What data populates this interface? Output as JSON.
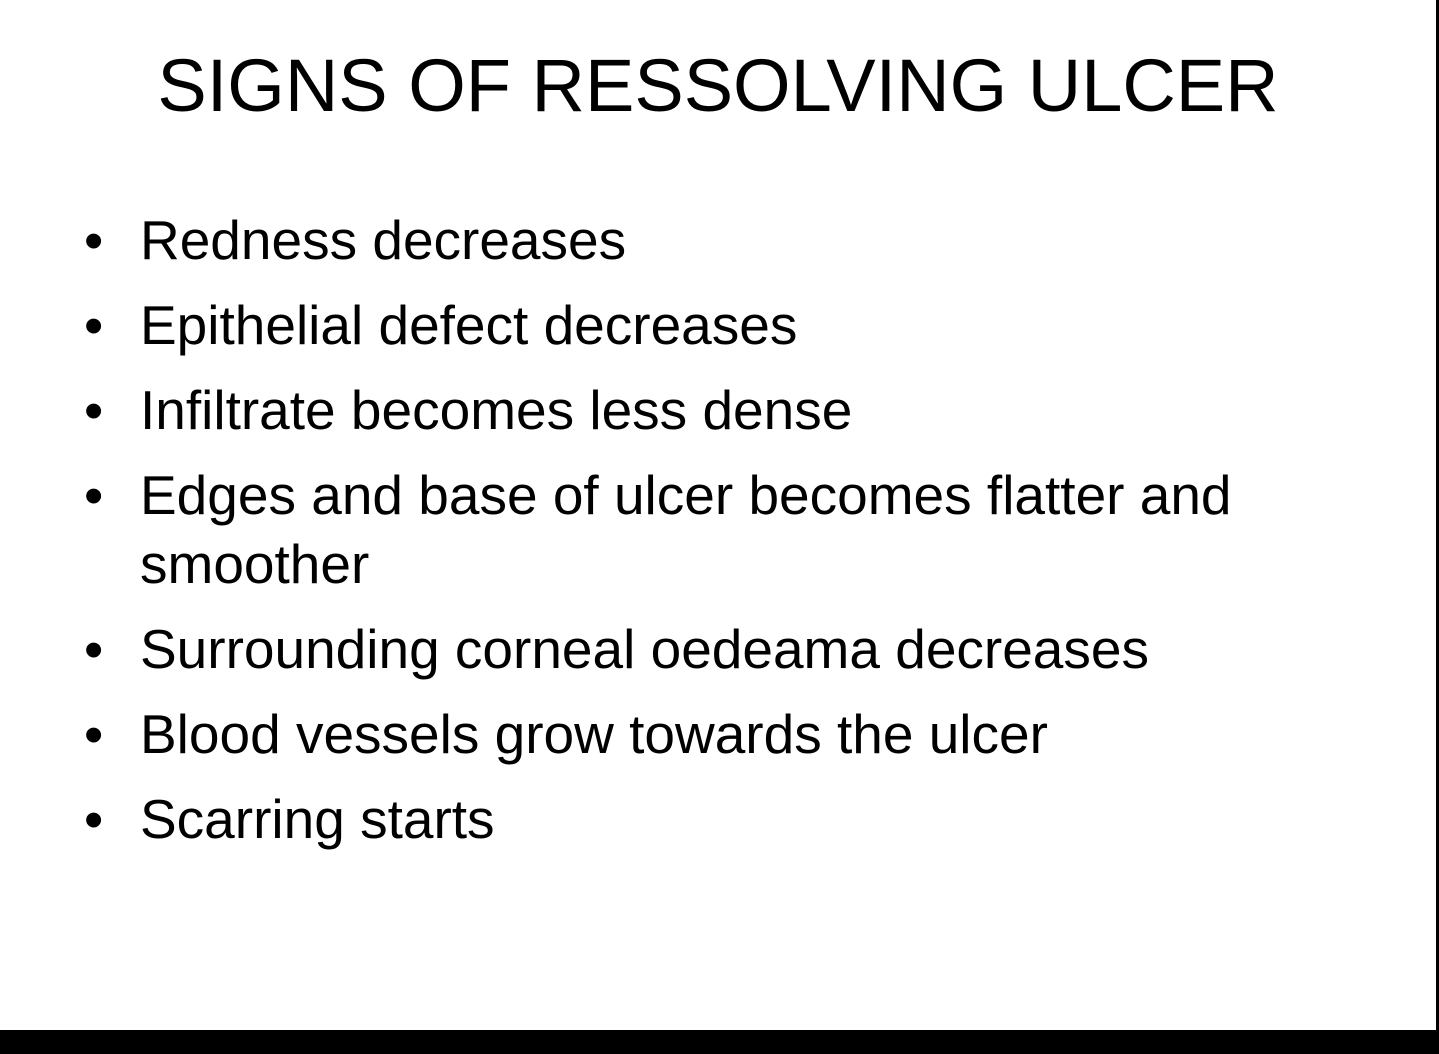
{
  "slide": {
    "title": "SIGNS OF RESSOLVING ULCER",
    "bullet_glyph": "•",
    "bullets": [
      "Redness decreases",
      "Epithelial defect decreases",
      "Infiltrate becomes less dense",
      "Edges and base of ulcer becomes flatter and smoother",
      "Surrounding corneal oedeama decreases",
      "Blood vessels grow towards the ulcer",
      "Scarring starts"
    ]
  },
  "colors": {
    "background": "#ffffff",
    "text": "#000000",
    "frame": "#000000"
  }
}
